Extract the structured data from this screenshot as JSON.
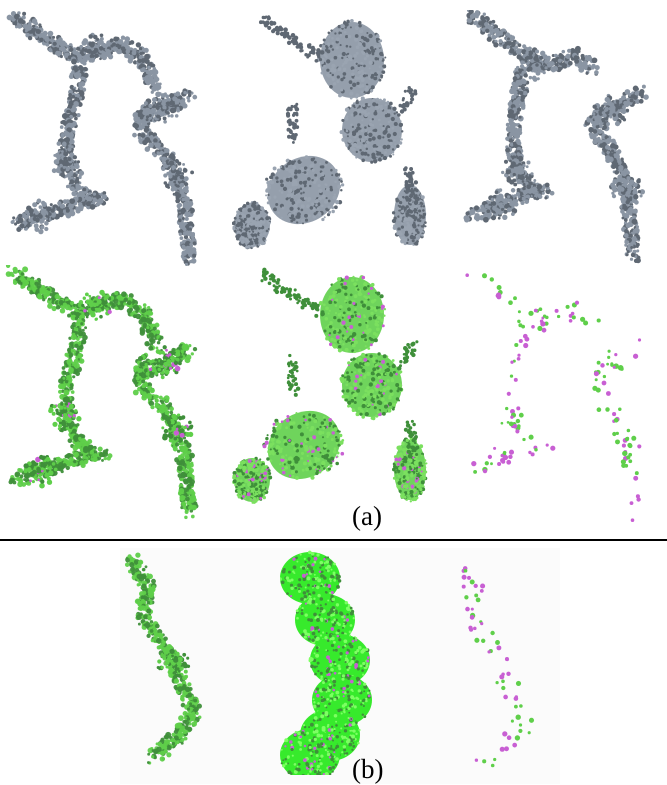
{
  "figure": {
    "labels": {
      "a": "(a)",
      "b": "(b)"
    },
    "colors": {
      "gray_particles": "#8a95a3",
      "gray_outline": "#5f6873",
      "green_particles": "#5fcf4a",
      "green_dark": "#3f8f3a",
      "bright_green": "#37ea2c",
      "magenta_particles": "#c85fd3",
      "background": "#ffffff",
      "divider": "#000000"
    },
    "panels": [
      {
        "id": "a-top-left",
        "style": "gray",
        "shape": "branched"
      },
      {
        "id": "a-top-middle",
        "style": "gray",
        "shape": "blobs"
      },
      {
        "id": "a-top-right",
        "style": "gray",
        "shape": "branched"
      },
      {
        "id": "a-bottom-left",
        "style": "green",
        "shape": "branched"
      },
      {
        "id": "a-bottom-middle",
        "style": "green",
        "shape": "blobs"
      },
      {
        "id": "a-bottom-right",
        "style": "sparse",
        "shape": "branched"
      },
      {
        "id": "b-left",
        "style": "green",
        "shape": "chain"
      },
      {
        "id": "b-middle",
        "style": "bright",
        "shape": "tube"
      },
      {
        "id": "b-right",
        "style": "sparse",
        "shape": "chain"
      }
    ]
  }
}
